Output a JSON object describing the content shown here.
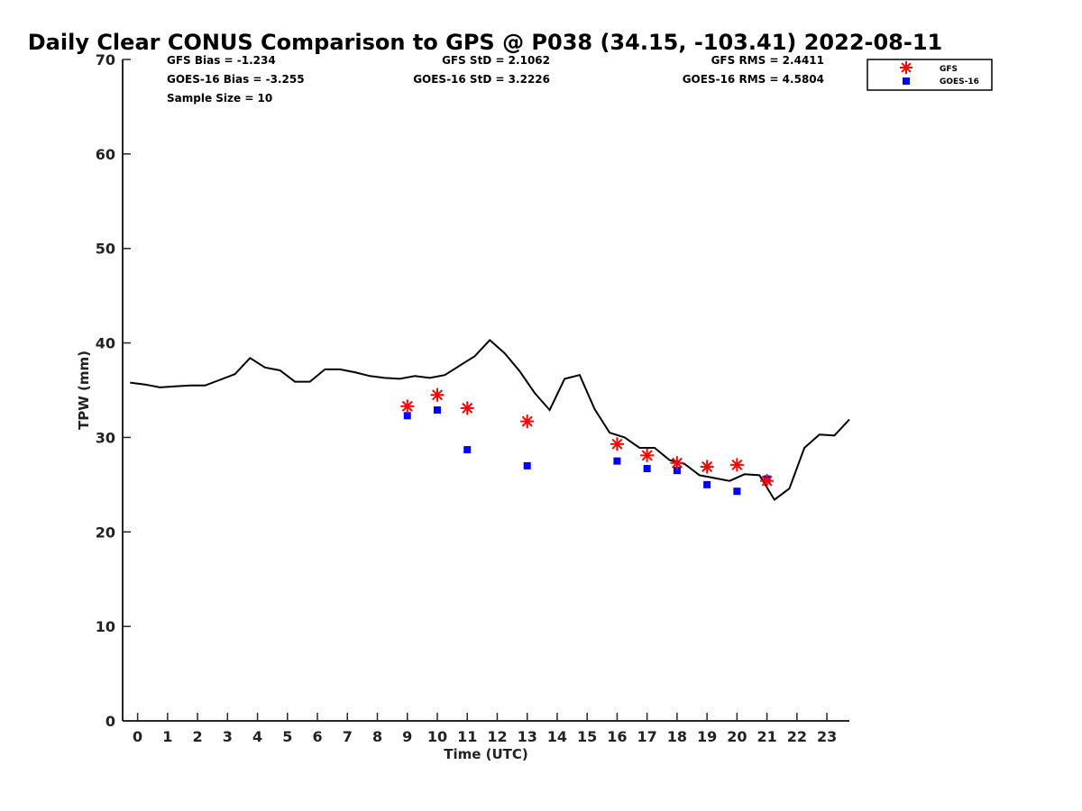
{
  "title": "Daily Clear CONUS Comparison to GPS @ P038 (34.15, -103.41) 2022-08-11",
  "stats": {
    "gfs_bias": "GFS Bias = -1.234",
    "goes_bias": "GOES-16 Bias = -3.255",
    "sample_size": "Sample Size = 10",
    "gfs_std": "GFS StD = 2.1062",
    "goes_std": "GOES-16 StD = 3.2226",
    "gfs_rms": "GFS RMS = 2.4411",
    "goes_rms": "GOES-16 RMS = 4.5804"
  },
  "colors": {
    "gps_line": "#000000",
    "gfs": "#ff0000",
    "goes": "#0000ff",
    "axis": "#262626"
  },
  "chart_data": {
    "type": "scatter",
    "title": "Daily Clear CONUS Comparison to GPS @ P038 (34.15, -103.41) 2022-08-11",
    "xlabel": "Time (UTC)",
    "ylabel": "TPW (mm)",
    "xlim": [
      -0.5,
      23.75
    ],
    "ylim": [
      0,
      70
    ],
    "xticks": [
      0,
      1,
      2,
      3,
      4,
      5,
      6,
      7,
      8,
      9,
      10,
      11,
      12,
      13,
      14,
      15,
      16,
      17,
      18,
      19,
      20,
      21,
      22,
      23
    ],
    "yticks": [
      0,
      10,
      20,
      30,
      40,
      50,
      60,
      70
    ],
    "grid": false,
    "legend_position": "top-right",
    "legend": [
      "GFS",
      "GOES-16"
    ],
    "series": [
      {
        "kind": "line",
        "x": [
          -0.25,
          0.25,
          0.75,
          1.25,
          1.75,
          2.25,
          2.75,
          3.25,
          3.75,
          4.25,
          4.75,
          5.25,
          5.75,
          6.25,
          6.75,
          7.25,
          7.75,
          8.25,
          8.75,
          9.25,
          9.75,
          10.25,
          10.75,
          11.25,
          11.75,
          12.25,
          12.75,
          13.25,
          13.75,
          14.25,
          14.75,
          15.25,
          15.75,
          16.25,
          16.75,
          17.25,
          17.75,
          18.25,
          18.75,
          19.25,
          19.75,
          20.25,
          20.75,
          21.25,
          21.75,
          22.25,
          22.75,
          23.25,
          23.75
        ],
        "y": [
          35.8,
          35.6,
          35.3,
          35.4,
          35.5,
          35.5,
          36.1,
          36.7,
          38.4,
          37.4,
          37.1,
          35.9,
          35.9,
          37.2,
          37.2,
          36.9,
          36.5,
          36.3,
          36.2,
          36.5,
          36.3,
          36.6,
          37.6,
          38.6,
          40.3,
          38.9,
          37.0,
          34.7,
          32.9,
          36.2,
          36.6,
          33.0,
          30.5,
          30.0,
          28.9,
          28.9,
          27.6,
          27.2,
          26.0,
          25.7,
          25.4,
          26.1,
          26.0,
          23.4,
          24.6,
          28.9,
          30.3,
          30.2,
          31.9
        ]
      },
      {
        "name": "GFS",
        "kind": "scatter",
        "marker": "asterisk",
        "x": [
          9,
          10,
          11,
          13,
          16,
          17,
          18,
          19,
          20,
          21
        ],
        "y": [
          33.3,
          34.5,
          33.1,
          31.7,
          29.3,
          28.1,
          27.3,
          26.9,
          27.1,
          25.4
        ]
      },
      {
        "name": "GOES-16",
        "kind": "scatter",
        "marker": "square",
        "x": [
          9,
          10,
          11,
          13,
          16,
          17,
          18,
          19,
          20,
          21
        ],
        "y": [
          32.3,
          32.9,
          28.7,
          27.0,
          27.5,
          26.7,
          26.5,
          25.0,
          24.3,
          25.6
        ]
      }
    ]
  }
}
